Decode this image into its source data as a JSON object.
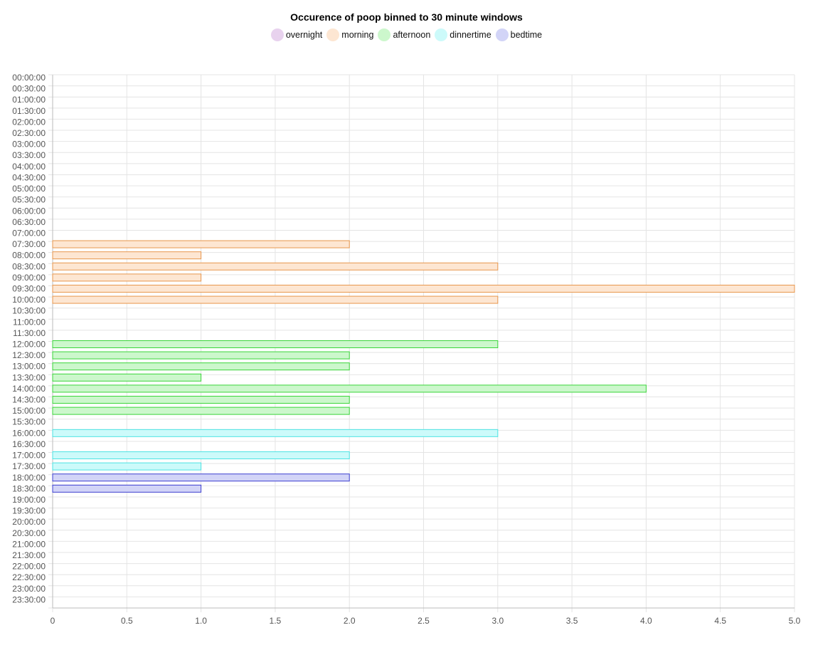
{
  "chart_data": {
    "type": "bar",
    "orientation": "horizontal",
    "title": "Occurence of poop binned to 30 minute windows",
    "xlim": [
      0,
      5
    ],
    "xticks": [
      "0",
      "0.5",
      "1.0",
      "1.5",
      "2.0",
      "2.5",
      "3.0",
      "3.5",
      "4.0",
      "4.5",
      "5.0"
    ],
    "grid": true,
    "legend_position": "top",
    "legend": [
      {
        "name": "overnight",
        "fill": "#e8d2ee",
        "stroke": "#c9a6d6"
      },
      {
        "name": "morning",
        "fill": "#fde6d2",
        "stroke": "#e8974d"
      },
      {
        "name": "afternoon",
        "fill": "#ccf7cc",
        "stroke": "#3ad53a"
      },
      {
        "name": "dinnertime",
        "fill": "#ccfafa",
        "stroke": "#4de3e3"
      },
      {
        "name": "bedtime",
        "fill": "#d2d4f7",
        "stroke": "#3c3fd0"
      }
    ],
    "categories": [
      "00:00:00",
      "00:30:00",
      "01:00:00",
      "01:30:00",
      "02:00:00",
      "02:30:00",
      "03:00:00",
      "03:30:00",
      "04:00:00",
      "04:30:00",
      "05:00:00",
      "05:30:00",
      "06:00:00",
      "06:30:00",
      "07:00:00",
      "07:30:00",
      "08:00:00",
      "08:30:00",
      "09:00:00",
      "09:30:00",
      "10:00:00",
      "10:30:00",
      "11:00:00",
      "11:30:00",
      "12:00:00",
      "12:30:00",
      "13:00:00",
      "13:30:00",
      "14:00:00",
      "14:30:00",
      "15:00:00",
      "15:30:00",
      "16:00:00",
      "16:30:00",
      "17:00:00",
      "17:30:00",
      "18:00:00",
      "18:30:00",
      "19:00:00",
      "19:30:00",
      "20:00:00",
      "20:30:00",
      "21:00:00",
      "21:30:00",
      "22:00:00",
      "22:30:00",
      "23:00:00",
      "23:30:00"
    ],
    "values": [
      0,
      0,
      0,
      0,
      0,
      0,
      0,
      0,
      0,
      0,
      0,
      0,
      0,
      0,
      0,
      2,
      1,
      3,
      1,
      5,
      3,
      0,
      0,
      0,
      3,
      2,
      2,
      1,
      4,
      2,
      2,
      0,
      3,
      0,
      2,
      1,
      2,
      1,
      0,
      0,
      0,
      0,
      0,
      0,
      0,
      0,
      0,
      0
    ],
    "groups": [
      "overnight",
      "overnight",
      "overnight",
      "overnight",
      "overnight",
      "overnight",
      "overnight",
      "overnight",
      "overnight",
      "overnight",
      "overnight",
      "overnight",
      "overnight",
      "overnight",
      "morning",
      "morning",
      "morning",
      "morning",
      "morning",
      "morning",
      "morning",
      "morning",
      "morning",
      "morning",
      "afternoon",
      "afternoon",
      "afternoon",
      "afternoon",
      "afternoon",
      "afternoon",
      "afternoon",
      "afternoon",
      "dinnertime",
      "dinnertime",
      "dinnertime",
      "dinnertime",
      "bedtime",
      "bedtime",
      "bedtime",
      "bedtime",
      "bedtime",
      "bedtime",
      "overnight",
      "overnight",
      "overnight",
      "overnight",
      "overnight",
      "overnight"
    ]
  }
}
